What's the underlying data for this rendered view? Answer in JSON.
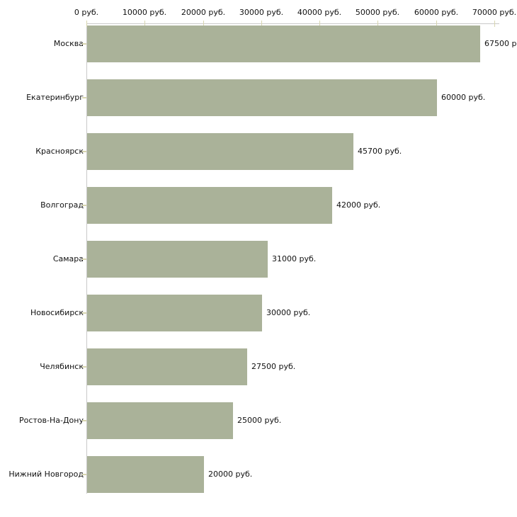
{
  "chart_data": {
    "type": "bar",
    "orientation": "horizontal",
    "title": "",
    "xlabel": "",
    "ylabel": "",
    "grid": false,
    "legend": false,
    "categories": [
      "Москва",
      "Екатеринбург",
      "Красноярск",
      "Волгоград",
      "Самара",
      "Новосибирск",
      "Челябинск",
      "Ростов-На-Дону",
      "Нижний Новгород"
    ],
    "values": [
      67500,
      60000,
      45700,
      42000,
      31000,
      30000,
      27500,
      25000,
      20000
    ],
    "value_labels": [
      "67500 р",
      "60000 руб.",
      "45700 руб.",
      "42000 руб.",
      "31000 руб.",
      "30000 руб.",
      "27500 руб.",
      "25000 руб.",
      "20000 руб."
    ],
    "x_axis": {
      "position": "top",
      "xlim": [
        0,
        70000
      ],
      "tick_values": [
        0,
        10000,
        20000,
        30000,
        40000,
        50000,
        60000,
        70000
      ],
      "tick_labels": [
        "0 руб.",
        "10000 руб.",
        "20000 руб.",
        "30000 руб.",
        "40000 руб.",
        "50000 руб.",
        "60000 руб.",
        "70000 руб."
      ]
    },
    "colors": {
      "bar": "#aab299",
      "axis_line": "#c9c9c9",
      "tick": "#d8d6b0",
      "text": "#111111",
      "background": "#ffffff"
    }
  }
}
